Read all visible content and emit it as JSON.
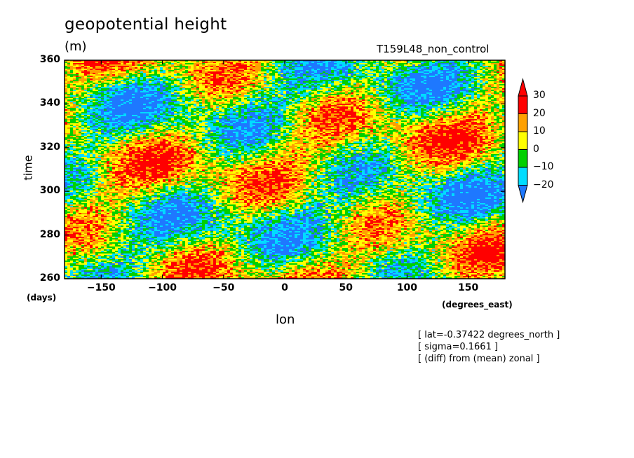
{
  "chart_data": {
    "type": "heatmap",
    "title": "geopotential height",
    "units": "(m)",
    "run_label": "T159L48_non_control",
    "xlabel": "lon",
    "ylabel": "time",
    "x_units": "(degrees_east)",
    "y_units": "(days)",
    "xlim": [
      -180,
      180
    ],
    "ylim": [
      260,
      360
    ],
    "x_ticks": [
      -150,
      -100,
      -50,
      0,
      50,
      100,
      150
    ],
    "y_ticks": [
      260,
      280,
      300,
      320,
      340,
      360
    ],
    "x_tick_labels": [
      "-150",
      "-100",
      "-50",
      "0",
      "50",
      "100",
      "150"
    ],
    "y_tick_labels": [
      "260",
      "280",
      "300",
      "320",
      "340",
      "360"
    ],
    "colorbar": {
      "levels": [
        -20,
        -10,
        0,
        10,
        20,
        30
      ],
      "labels": [
        "-20",
        "-10",
        "0",
        "10",
        "20",
        "30"
      ],
      "colors": [
        "#1e78ff",
        "#00dcff",
        "#00d000",
        "#ffff00",
        "#ffa000",
        "#ff0000",
        "#e62020"
      ],
      "extend": "both"
    },
    "annotations": [
      "[ lat=-0.37422 degrees_north ]",
      "[ sigma=0.1661 ]",
      "[ (diff) from (mean) zonal ]"
    ],
    "grid": false
  }
}
